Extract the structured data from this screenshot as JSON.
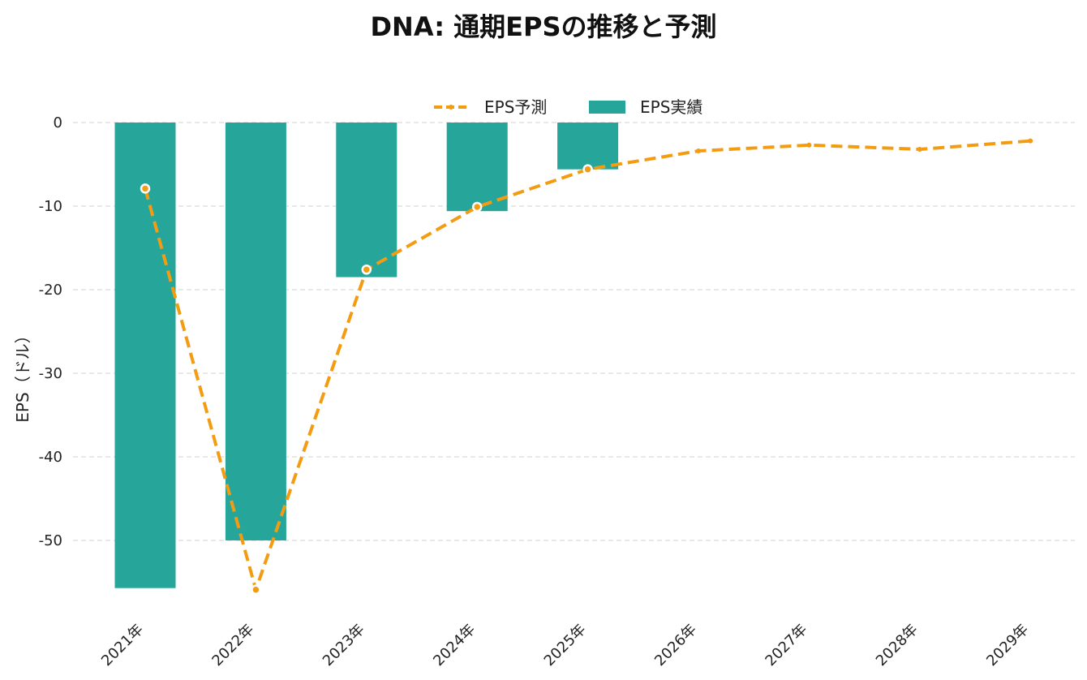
{
  "chart_data": {
    "type": "bar",
    "title": "DNA: 通期EPSの推移と予測",
    "xlabel": "",
    "ylabel": "EPS（ドル）",
    "categories": [
      "2021年",
      "2022年",
      "2023年",
      "2024年",
      "2025年",
      "2026年",
      "2027年",
      "2028年",
      "2029年"
    ],
    "ylim": [
      -58,
      0
    ],
    "yticks": [
      0,
      -10,
      -20,
      -30,
      -40,
      -50
    ],
    "grid": "horizontal dashed",
    "legend_position": "top-center",
    "series": [
      {
        "name": "EPS実績",
        "type": "bar",
        "color": "#26a69a",
        "values": [
          -55.7,
          -50.0,
          -18.5,
          -10.6,
          -5.6,
          null,
          null,
          null,
          null
        ]
      },
      {
        "name": "EPS予測",
        "type": "line",
        "style": "dashed",
        "color": "#f39c12",
        "values": [
          -7.9,
          -55.9,
          -17.6,
          -10.1,
          -5.6,
          -3.4,
          -2.7,
          -3.2,
          -2.2
        ],
        "markers": [
          true,
          true,
          true,
          true,
          true,
          false,
          false,
          false,
          false
        ]
      }
    ]
  }
}
